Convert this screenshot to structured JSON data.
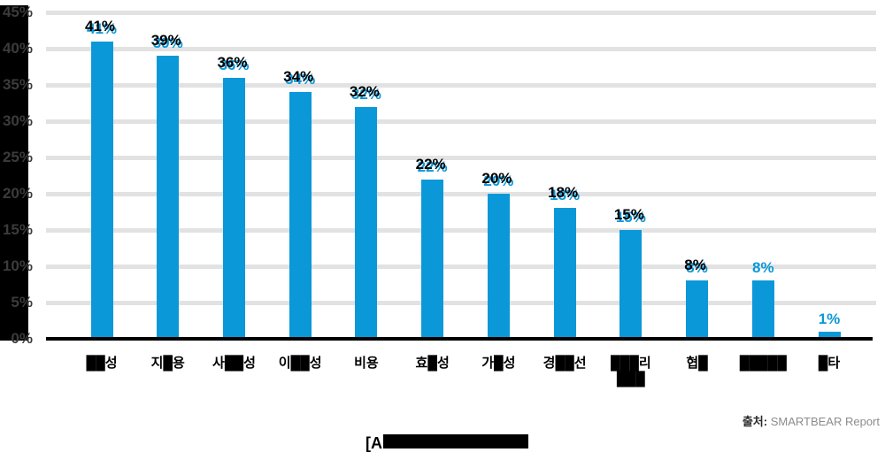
{
  "chart_data": {
    "type": "bar",
    "title": "",
    "xlabel": "",
    "ylabel": "",
    "ylim": [
      0,
      45
    ],
    "grid": "horizontal",
    "legend": "none",
    "bar_color": "#0a98d8",
    "value_label_color": "#0a98d8",
    "redaction_color": "#000000",
    "y_ticks": [
      {
        "label": "45%",
        "value": 45
      },
      {
        "label": "40%",
        "value": 40
      },
      {
        "label": "35%",
        "value": 35
      },
      {
        "label": "30%",
        "value": 30
      },
      {
        "label": "25%",
        "value": 25
      },
      {
        "label": "20%",
        "value": 20
      },
      {
        "label": "15%",
        "value": 15
      },
      {
        "label": "10%",
        "value": 10
      },
      {
        "label": "5%",
        "value": 5
      },
      {
        "label": "0%",
        "value": 0
      }
    ],
    "categories": [
      {
        "line1": "██성"
      },
      {
        "line1": "지█용"
      },
      {
        "line1": "사██성"
      },
      {
        "line1": "이██성"
      },
      {
        "line1": "비용"
      },
      {
        "line1": "효█성"
      },
      {
        "line1": "가█성"
      },
      {
        "line1": "경██선"
      },
      {
        "line1": "███리",
        "line2": "███"
      },
      {
        "line1": "협█"
      },
      {
        "line1": "█████"
      },
      {
        "line1": "█타"
      }
    ],
    "values": [
      41,
      39,
      36,
      34,
      32,
      22,
      20,
      18,
      15,
      8,
      8,
      1
    ],
    "value_labels": [
      "41%",
      "39%",
      "36%",
      "34%",
      "32%",
      "22%",
      "20%",
      "18%",
      "15%",
      "8%",
      "8%",
      "1%"
    ],
    "value_label_black_mark": [
      true,
      true,
      true,
      true,
      true,
      true,
      true,
      true,
      true,
      true,
      false,
      false
    ]
  },
  "source": {
    "prefix": "출처:",
    "text": "SMARTBEAR Report"
  },
  "caption": {
    "visible_text": "[A"
  }
}
